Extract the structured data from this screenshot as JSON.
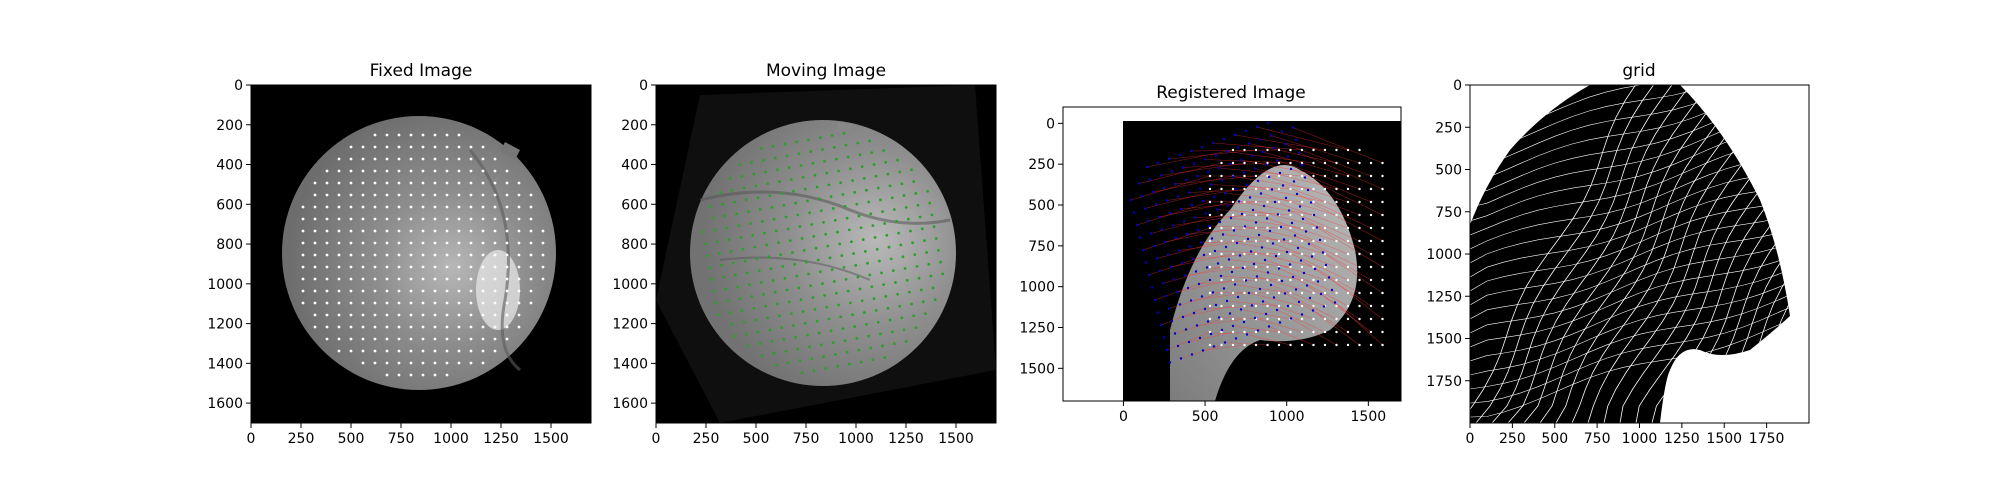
{
  "chart_data": [
    {
      "type": "scatter",
      "title": "Fixed Image",
      "xlim": [
        0,
        1700
      ],
      "ylim": [
        1700,
        0
      ],
      "xticks": [
        "0",
        "250",
        "500",
        "750",
        "1000",
        "1250",
        "1500"
      ],
      "yticks": [
        "0",
        "200",
        "400",
        "600",
        "800",
        "1000",
        "1200",
        "1400",
        "1600"
      ],
      "background": "grayscale fundus image (circular field of view)",
      "landmarks": {
        "color": "#ffffff",
        "spacing": 60,
        "extent": "regular grid covering the circular retina region"
      }
    },
    {
      "type": "scatter",
      "title": "Moving Image",
      "xlim": [
        0,
        1700
      ],
      "ylim": [
        1700,
        0
      ],
      "xticks": [
        "0",
        "250",
        "500",
        "750",
        "1000",
        "1250",
        "1500"
      ],
      "yticks": [
        "0",
        "200",
        "400",
        "600",
        "800",
        "1000",
        "1200",
        "1400",
        "1600"
      ],
      "background": "grayscale fundus image, rotated",
      "landmarks": {
        "color": "#2ca02c",
        "spacing": 60,
        "extent": "rotated/warped grid covering the retina"
      }
    },
    {
      "type": "scatter",
      "title": "Registered Image",
      "xlim": [
        -370,
        1700
      ],
      "ylim": [
        1700,
        -100
      ],
      "xticks": [
        "0",
        "500",
        "1000",
        "1500"
      ],
      "yticks": [
        "0",
        "250",
        "500",
        "750",
        "1000",
        "1250",
        "1500"
      ],
      "series": [
        {
          "color": "#ffffff",
          "marker": "dots",
          "extent": "fixed landmarks"
        },
        {
          "color": "#0000cc",
          "marker": "dots",
          "extent": "warped landmarks"
        },
        {
          "color": "#ff3333",
          "marker": "lines",
          "extent": "correspondence lines"
        }
      ]
    },
    {
      "type": "line",
      "title": "grid",
      "xlim": [
        0,
        2000
      ],
      "ylim": [
        2000,
        0
      ],
      "xticks": [
        "0",
        "250",
        "500",
        "750",
        "1000",
        "1250",
        "1500",
        "1750"
      ],
      "yticks": [
        "0",
        "250",
        "500",
        "750",
        "1000",
        "1250",
        "1500",
        "1750"
      ],
      "grid_color": "#ffffff",
      "background_color": "#000000"
    }
  ]
}
